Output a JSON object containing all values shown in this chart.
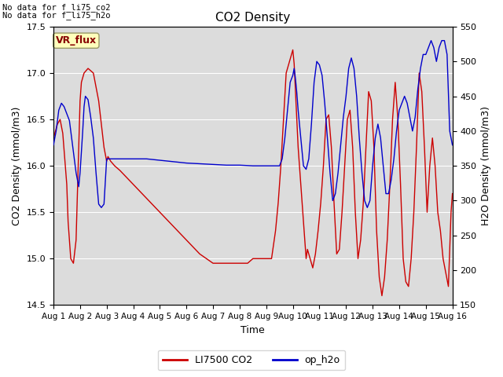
{
  "title": "CO2 Density",
  "xlabel": "Time",
  "ylabel_left": "CO2 Density (mmol/m3)",
  "ylabel_right": "H2O Density (mmol/m3)",
  "ylim_left": [
    14.5,
    17.5
  ],
  "ylim_right": [
    150,
    550
  ],
  "xlim": [
    0,
    15
  ],
  "x_tick_labels": [
    "Aug 1",
    "Aug 2",
    "Aug 3",
    "Aug 4",
    "Aug 5",
    "Aug 6",
    "Aug 7",
    "Aug 8",
    "Aug 9",
    "Aug 10",
    "Aug 11",
    "Aug 12",
    "Aug 13",
    "Aug 14",
    "Aug 15",
    "Aug 16"
  ],
  "annotation1": "No data for f_li75_co2",
  "annotation2": "No data for f_li75_h2o",
  "vr_flux_label": "VR_flux",
  "legend_label1": "LI7500 CO2",
  "legend_label2": "op_h2o",
  "line_color_red": "#cc0000",
  "line_color_blue": "#0000cc",
  "bg_color": "#dcdcdc",
  "vr_box_bg": "#ffffbb",
  "vr_box_edge": "#999966",
  "vr_text_color": "#880000",
  "co2_x": [
    0.0,
    0.15,
    0.25,
    0.35,
    0.5,
    0.55,
    0.65,
    0.75,
    0.85,
    1.0,
    1.05,
    1.15,
    1.3,
    1.5,
    1.6,
    1.7,
    1.9,
    2.0,
    2.05,
    2.15,
    2.3,
    2.5,
    3.0,
    3.5,
    4.0,
    4.5,
    5.0,
    5.5,
    6.0,
    6.5,
    7.0,
    7.3,
    7.5,
    7.7,
    8.0,
    8.2,
    8.35,
    8.45,
    8.55,
    8.65,
    8.75,
    9.0,
    9.05,
    9.1,
    9.15,
    9.2,
    9.3,
    9.4,
    9.5,
    9.55,
    9.65,
    9.75,
    9.85,
    9.95,
    10.05,
    10.15,
    10.25,
    10.35,
    10.45,
    10.55,
    10.65,
    10.75,
    10.85,
    10.95,
    11.05,
    11.15,
    11.25,
    11.35,
    11.45,
    11.55,
    11.65,
    11.75,
    11.85,
    11.95,
    12.05,
    12.15,
    12.25,
    12.35,
    12.45,
    12.55,
    12.65,
    12.75,
    12.85,
    12.95,
    13.05,
    13.15,
    13.25,
    13.35,
    13.45,
    13.55,
    13.65,
    13.75,
    13.85,
    13.95,
    14.05,
    14.15,
    14.25,
    14.35,
    14.45,
    14.55,
    14.65,
    14.75,
    14.85,
    14.95,
    15.0
  ],
  "co2_y": [
    16.3,
    16.45,
    16.5,
    16.35,
    15.8,
    15.4,
    15.0,
    14.95,
    15.2,
    16.7,
    16.9,
    17.0,
    17.05,
    17.0,
    16.85,
    16.7,
    16.2,
    16.05,
    16.1,
    16.05,
    16.0,
    15.95,
    15.8,
    15.65,
    15.5,
    15.35,
    15.2,
    15.05,
    14.95,
    14.95,
    14.95,
    14.95,
    15.0,
    15.0,
    15.0,
    15.0,
    15.3,
    15.6,
    16.0,
    16.5,
    17.0,
    17.25,
    17.1,
    16.8,
    16.5,
    16.2,
    15.8,
    15.4,
    15.0,
    15.1,
    15.0,
    14.9,
    15.05,
    15.3,
    15.6,
    16.0,
    16.5,
    16.55,
    16.2,
    15.6,
    15.05,
    15.1,
    15.5,
    16.0,
    16.5,
    16.6,
    16.2,
    15.5,
    15.0,
    15.2,
    15.6,
    16.2,
    16.8,
    16.7,
    16.2,
    15.3,
    14.8,
    14.6,
    14.8,
    15.2,
    15.8,
    16.5,
    16.9,
    16.5,
    15.8,
    15.0,
    14.75,
    14.7,
    15.0,
    15.5,
    16.2,
    17.0,
    16.8,
    16.2,
    15.5,
    16.0,
    16.3,
    16.0,
    15.5,
    15.3,
    15.0,
    14.85,
    14.7,
    15.5,
    15.7
  ],
  "h2o_x": [
    0.0,
    0.1,
    0.2,
    0.3,
    0.4,
    0.5,
    0.6,
    0.7,
    0.75,
    0.8,
    0.85,
    0.9,
    0.95,
    1.0,
    1.05,
    1.1,
    1.15,
    1.2,
    1.3,
    1.4,
    1.5,
    1.6,
    1.7,
    1.8,
    1.9,
    2.0,
    2.1,
    2.2,
    2.5,
    3.0,
    3.5,
    4.0,
    4.5,
    5.0,
    5.5,
    6.0,
    6.5,
    7.0,
    7.5,
    8.0,
    8.5,
    8.6,
    8.7,
    8.8,
    8.9,
    9.0,
    9.05,
    9.1,
    9.15,
    9.2,
    9.3,
    9.4,
    9.5,
    9.6,
    9.7,
    9.8,
    9.9,
    10.0,
    10.1,
    10.2,
    10.3,
    10.4,
    10.5,
    10.6,
    10.7,
    10.8,
    10.9,
    11.0,
    11.1,
    11.2,
    11.3,
    11.4,
    11.5,
    11.6,
    11.7,
    11.8,
    11.9,
    12.0,
    12.1,
    12.2,
    12.3,
    12.4,
    12.5,
    12.6,
    12.7,
    12.8,
    12.9,
    13.0,
    13.1,
    13.2,
    13.3,
    13.4,
    13.5,
    13.6,
    13.7,
    13.8,
    13.9,
    14.0,
    14.1,
    14.2,
    14.3,
    14.4,
    14.5,
    14.6,
    14.7,
    14.8,
    14.9,
    15.0
  ],
  "h2o_y": [
    380,
    400,
    430,
    440,
    435,
    425,
    415,
    385,
    370,
    355,
    340,
    330,
    320,
    340,
    370,
    400,
    435,
    450,
    445,
    420,
    390,
    340,
    295,
    290,
    295,
    360,
    360,
    360,
    360,
    360,
    360,
    358,
    356,
    354,
    353,
    352,
    351,
    351,
    350,
    350,
    350,
    360,
    390,
    430,
    470,
    480,
    490,
    475,
    455,
    430,
    390,
    350,
    345,
    360,
    410,
    470,
    500,
    495,
    480,
    440,
    390,
    340,
    300,
    310,
    340,
    380,
    420,
    450,
    490,
    505,
    490,
    450,
    390,
    340,
    300,
    290,
    300,
    350,
    390,
    410,
    390,
    350,
    310,
    310,
    330,
    360,
    400,
    430,
    440,
    450,
    440,
    420,
    400,
    420,
    460,
    490,
    510,
    510,
    520,
    530,
    520,
    500,
    520,
    530,
    530,
    510,
    400,
    380
  ]
}
